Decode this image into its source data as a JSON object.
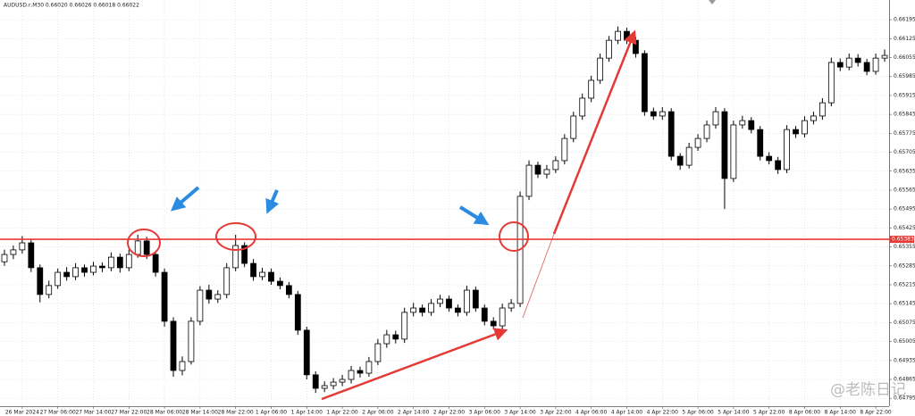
{
  "chart_data": {
    "type": "candlestick",
    "title": "AUDUSD.r,M30 0.66020 0.66026 0.66018 0.66022",
    "annotation": "@老陈日记",
    "bull_color": "#ffffff",
    "bear_color": "#000000",
    "wick_color": "#000000",
    "grid": true,
    "ylim": [
      0.64766,
      0.66268
    ],
    "yticks": [
      0.66195,
      0.66125,
      0.66055,
      0.65985,
      0.65915,
      0.65845,
      0.65775,
      0.65705,
      0.65635,
      0.65565,
      0.65495,
      0.65425,
      0.65355,
      0.65285,
      0.65215,
      0.65145,
      0.65075,
      0.65005,
      0.64935,
      0.64865,
      0.64795
    ],
    "level": {
      "value": 0.65383,
      "color": "#e53935"
    },
    "categories": [
      null,
      null,
      "26 Mar 2024",
      null,
      null,
      null,
      "27 Mar 06:00",
      null,
      null,
      null,
      "27 Mar 14:00",
      null,
      null,
      null,
      "27 Mar 22:00",
      null,
      null,
      null,
      "28 Mar 06:00",
      null,
      null,
      null,
      "28 Mar 14:00",
      null,
      null,
      null,
      "28 Mar 22:00",
      null,
      null,
      null,
      "1 Apr 06:00",
      null,
      null,
      null,
      "1 Apr 14:00",
      null,
      null,
      null,
      "1 Apr 22:00",
      null,
      null,
      null,
      "2 Apr 06:00",
      null,
      null,
      null,
      "2 Apr 14:00",
      null,
      null,
      null,
      "2 Apr 22:00",
      null,
      null,
      null,
      "3 Apr 06:00",
      null,
      null,
      null,
      "3 Apr 14:00",
      null,
      null,
      null,
      "3 Apr 22:00",
      null,
      null,
      null,
      "4 Apr 06:00",
      null,
      null,
      null,
      "4 Apr 14:00",
      null,
      null,
      null,
      "4 Apr 22:00",
      null,
      null,
      null,
      "5 Apr 06:00",
      null,
      null,
      null,
      "5 Apr 14:00",
      null,
      null,
      null,
      "5 Apr 22:00",
      null,
      null,
      null,
      "8 Apr 06:00",
      null,
      null,
      null,
      "8 Apr 14:00",
      null,
      null,
      null,
      "8 Apr 22:00",
      null
    ],
    "open": [
      0.653,
      0.65327,
      0.65344,
      0.6537,
      0.65278,
      0.65179,
      0.65212,
      0.65261,
      0.65245,
      0.65278,
      0.65261,
      0.65284,
      0.65278,
      0.65317,
      0.65278,
      0.65327,
      0.65377,
      0.65327,
      0.65261,
      0.6508,
      0.64898,
      0.64931,
      0.6508,
      0.65195,
      0.65162,
      0.65179,
      0.65278,
      0.6536,
      0.65294,
      0.65245,
      0.65261,
      0.65228,
      0.65212,
      0.65179,
      0.65047,
      0.64882,
      0.64832,
      0.64842,
      0.64855,
      0.64865,
      0.64898,
      0.64888,
      0.64931,
      0.64997,
      0.6503,
      0.65014,
      0.65113,
      0.65129,
      0.65113,
      0.65146,
      0.65162,
      0.65129,
      0.65113,
      0.65195,
      0.65129,
      0.6508,
      0.65063,
      0.65129,
      0.65146,
      0.65542,
      0.65657,
      0.65624,
      0.65641,
      0.65674,
      0.65756,
      0.65839,
      0.65905,
      0.65971,
      0.66053,
      0.66119,
      0.66152,
      0.66119,
      0.6607,
      0.65855,
      0.65839,
      0.65855,
      0.6569,
      0.65657,
      0.65723,
      0.65756,
      0.65806,
      0.65855,
      0.65608,
      0.65806,
      0.65822,
      0.65789,
      0.6569,
      0.65674,
      0.65641,
      0.65789,
      0.65773,
      0.65822,
      0.65839,
      0.65888,
      0.66037,
      0.6602,
      0.66053,
      0.66037,
      0.66004,
      0.66053
    ],
    "high": [
      0.65345,
      0.6536,
      0.65395,
      0.65382,
      0.6529,
      0.6523,
      0.65275,
      0.6528,
      0.65295,
      0.6529,
      0.653,
      0.65298,
      0.65335,
      0.6533,
      0.65345,
      0.654,
      0.65392,
      0.6534,
      0.65275,
      0.65095,
      0.6495,
      0.65095,
      0.6521,
      0.65215,
      0.65195,
      0.65295,
      0.654,
      0.65372,
      0.6531,
      0.65278,
      0.65275,
      0.65242,
      0.65225,
      0.65192,
      0.6506,
      0.64895,
      0.64858,
      0.6487,
      0.64882,
      0.64915,
      0.64912,
      0.64948,
      0.65015,
      0.65048,
      0.65045,
      0.6513,
      0.65148,
      0.65142,
      0.65162,
      0.65178,
      0.65175,
      0.65142,
      0.65212,
      0.65208,
      0.65142,
      0.65095,
      0.65145,
      0.65162,
      0.6556,
      0.65675,
      0.6567,
      0.65658,
      0.6569,
      0.65772,
      0.65855,
      0.65922,
      0.65988,
      0.6607,
      0.66135,
      0.6617,
      0.66165,
      0.66132,
      0.66082,
      0.6587,
      0.65872,
      0.65868,
      0.65702,
      0.6574,
      0.65772,
      0.65822,
      0.65872,
      0.65868,
      0.65822,
      0.6584,
      0.65835,
      0.65802,
      0.65705,
      0.65688,
      0.65805,
      0.65802,
      0.65838,
      0.65855,
      0.65905,
      0.66055,
      0.66052,
      0.6607,
      0.66068,
      0.6605,
      0.6607,
      0.66085
    ],
    "low": [
      0.65285,
      0.6531,
      0.6533,
      0.65262,
      0.6515,
      0.65165,
      0.652,
      0.6523,
      0.65232,
      0.65245,
      0.6525,
      0.65262,
      0.65265,
      0.6526,
      0.65265,
      0.65315,
      0.6531,
      0.65245,
      0.6506,
      0.64875,
      0.6488,
      0.6492,
      0.65065,
      0.65145,
      0.65148,
      0.65165,
      0.65265,
      0.6528,
      0.6523,
      0.65232,
      0.65215,
      0.65198,
      0.65165,
      0.6503,
      0.64865,
      0.64815,
      0.64818,
      0.64828,
      0.6484,
      0.6485,
      0.64872,
      0.64875,
      0.64918,
      0.64982,
      0.64998,
      0.65,
      0.65098,
      0.65098,
      0.651,
      0.65132,
      0.65115,
      0.65098,
      0.651,
      0.65115,
      0.65065,
      0.6505,
      0.6505,
      0.65115,
      0.65132,
      0.65528,
      0.6561,
      0.65608,
      0.65628,
      0.6566,
      0.65742,
      0.65825,
      0.6589,
      0.65958,
      0.6604,
      0.66105,
      0.66105,
      0.66055,
      0.6584,
      0.65825,
      0.65825,
      0.65675,
      0.6564,
      0.65645,
      0.6571,
      0.65742,
      0.65792,
      0.65495,
      0.65595,
      0.65792,
      0.65775,
      0.65675,
      0.6566,
      0.65625,
      0.65628,
      0.65758,
      0.6576,
      0.65808,
      0.65825,
      0.65875,
      0.66005,
      0.66008,
      0.66022,
      0.6599,
      0.65992,
      0.6604
    ],
    "close": [
      0.65327,
      0.65344,
      0.6537,
      0.65278,
      0.65179,
      0.65212,
      0.65261,
      0.65245,
      0.65278,
      0.65261,
      0.65284,
      0.65278,
      0.65317,
      0.65278,
      0.65327,
      0.65377,
      0.65327,
      0.65261,
      0.6508,
      0.64898,
      0.64931,
      0.6508,
      0.65195,
      0.65162,
      0.65179,
      0.65278,
      0.6536,
      0.65294,
      0.65245,
      0.65261,
      0.65228,
      0.65212,
      0.65179,
      0.65047,
      0.64882,
      0.64832,
      0.64842,
      0.64855,
      0.64865,
      0.64898,
      0.64888,
      0.64931,
      0.64997,
      0.6503,
      0.65014,
      0.65113,
      0.65129,
      0.65113,
      0.65146,
      0.65162,
      0.65129,
      0.65113,
      0.65195,
      0.65129,
      0.6508,
      0.65063,
      0.65129,
      0.65146,
      0.65542,
      0.65657,
      0.65624,
      0.65641,
      0.65674,
      0.65756,
      0.65839,
      0.65905,
      0.65971,
      0.66053,
      0.66119,
      0.66152,
      0.66119,
      0.6607,
      0.65855,
      0.65839,
      0.65855,
      0.6569,
      0.65657,
      0.65723,
      0.65756,
      0.65806,
      0.65855,
      0.65608,
      0.65806,
      0.65822,
      0.65789,
      0.6569,
      0.65674,
      0.65641,
      0.65789,
      0.65773,
      0.65822,
      0.65839,
      0.65888,
      0.66037,
      0.6602,
      0.66053,
      0.66037,
      0.66004,
      0.66053,
      0.66063
    ]
  }
}
